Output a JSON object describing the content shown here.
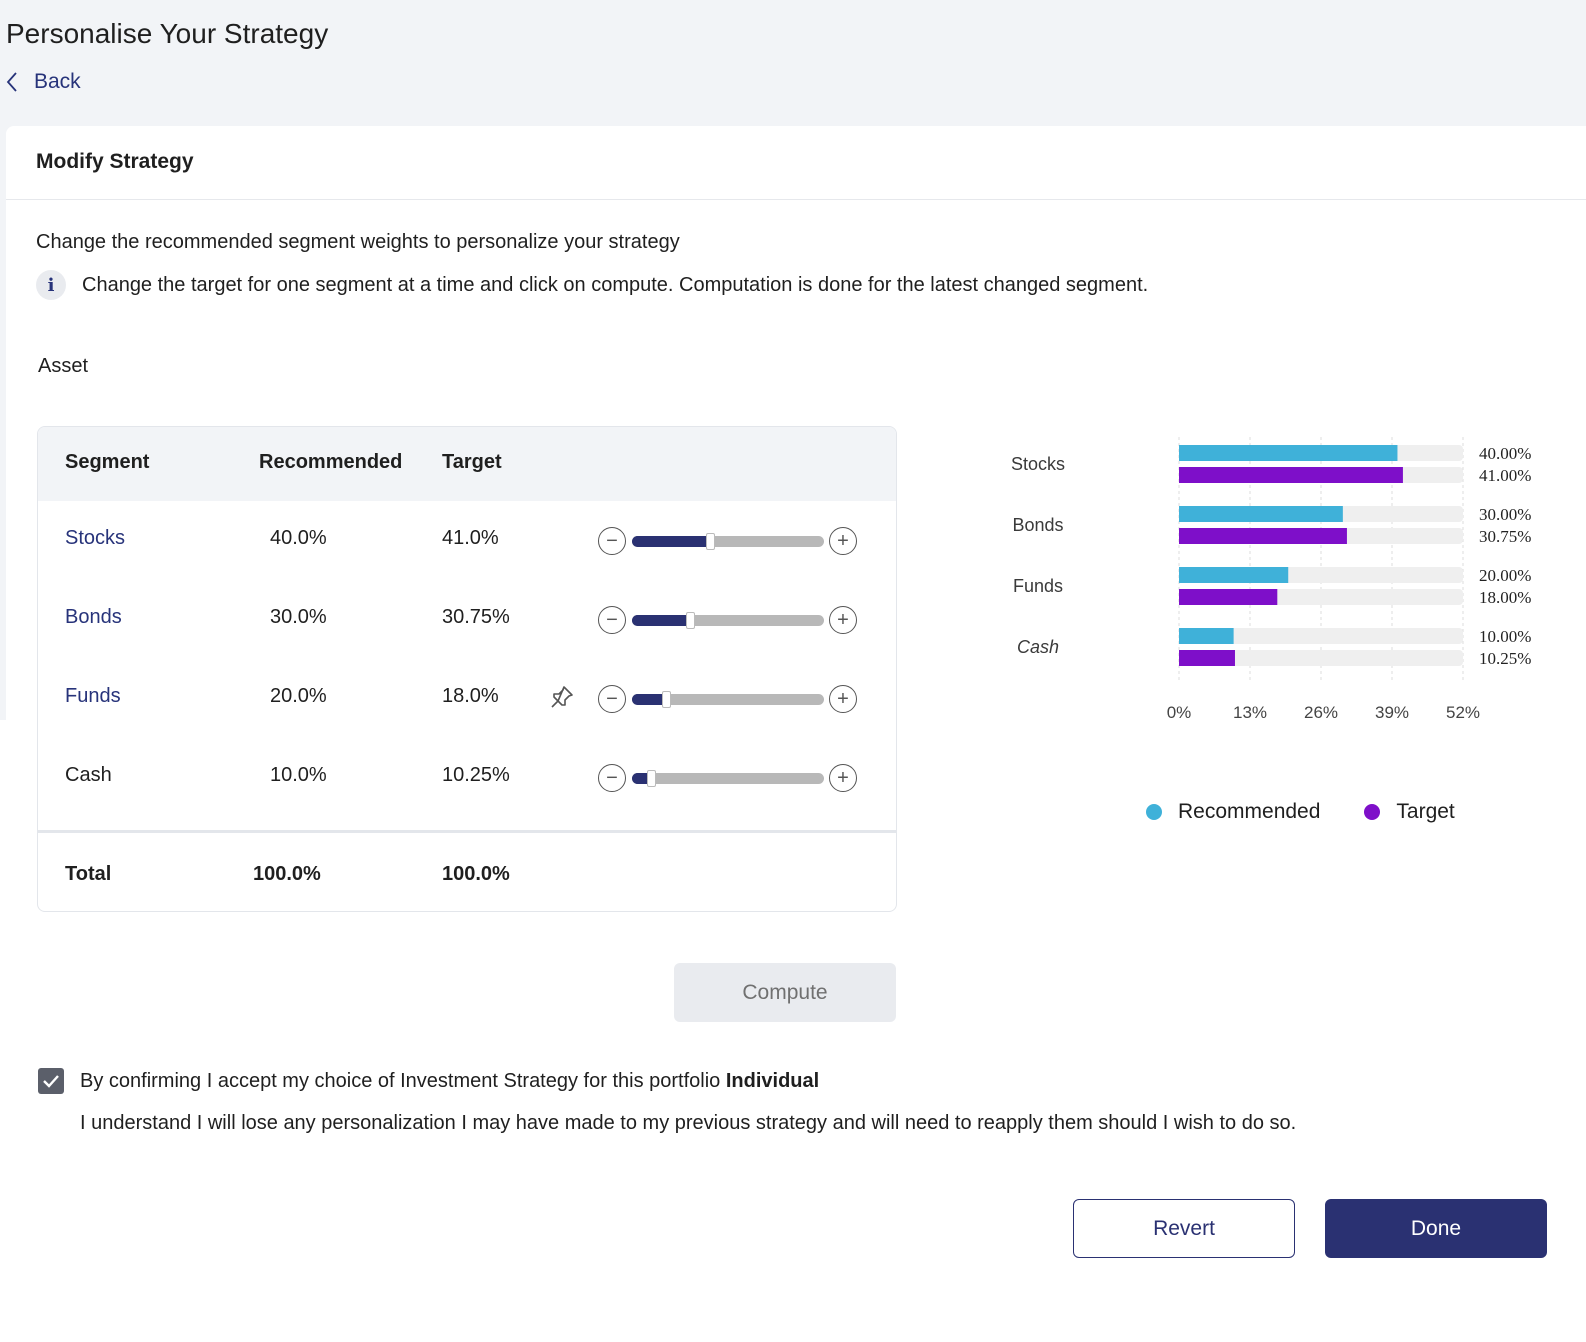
{
  "page": {
    "title": "Personalise Your Strategy",
    "back_label": "Back"
  },
  "card": {
    "title": "Modify Strategy",
    "intro": "Change the recommended segment weights to personalize your strategy",
    "info": "Change the target for one segment at a time and click on compute. Computation is done for the latest changed segment.",
    "info_icon": "i",
    "asset_label": "Asset"
  },
  "table": {
    "headers": {
      "segment": "Segment",
      "recommended": "Recommended",
      "target": "Target"
    },
    "rows": [
      {
        "segment": "Stocks",
        "recommended": "40.0%",
        "target": "41.0%",
        "slider": 0.41,
        "link": true,
        "pinned": false
      },
      {
        "segment": "Bonds",
        "recommended": "30.0%",
        "target": "30.75%",
        "slider": 0.3075,
        "link": true,
        "pinned": false
      },
      {
        "segment": "Funds",
        "recommended": "20.0%",
        "target": "18.0%",
        "slider": 0.18,
        "link": true,
        "pinned": true
      },
      {
        "segment": "Cash",
        "recommended": "10.0%",
        "target": "10.25%",
        "slider": 0.1025,
        "link": false,
        "pinned": false
      }
    ],
    "total": {
      "label": "Total",
      "recommended": "100.0%",
      "target": "100.0%"
    },
    "minus_glyph": "−",
    "plus_glyph": "+"
  },
  "actions": {
    "compute_label": "Compute",
    "revert_label": "Revert",
    "done_label": "Done"
  },
  "confirm": {
    "checked": true,
    "text": "By confirming I accept my choice of Investment Strategy for this portfolio ",
    "portfolio": "Individual",
    "note": "I understand I will lose any personalization I may have made to my previous strategy and will need to reapply them should I wish to do so."
  },
  "colors": {
    "accent": "#2a3172",
    "recommended": "#3fb1d9",
    "target": "#7e0fc9",
    "bar_bg": "#efefef"
  },
  "icons": {
    "back": "chevron-left-icon",
    "info": "info-icon",
    "pin": "pin-icon",
    "minus": "minus-circle-icon",
    "plus": "plus-circle-icon",
    "check": "checkmark-icon"
  },
  "chart_data": {
    "type": "bar",
    "orientation": "horizontal",
    "categories": [
      "Stocks",
      "Bonds",
      "Funds",
      "Cash"
    ],
    "series": [
      {
        "name": "Recommended",
        "values": [
          40.0,
          30.0,
          20.0,
          10.0
        ],
        "labels": [
          "40.00%",
          "30.00%",
          "20.00%",
          "10.00%"
        ]
      },
      {
        "name": "Target",
        "values": [
          41.0,
          30.75,
          18.0,
          10.25
        ],
        "labels": [
          "41.00%",
          "30.75%",
          "18.00%",
          "10.25%"
        ]
      }
    ],
    "xticks": [
      "0%",
      "13%",
      "26%",
      "39%",
      "52%"
    ],
    "xlim": [
      0,
      52
    ],
    "grid": true,
    "legend_position": "bottom"
  }
}
